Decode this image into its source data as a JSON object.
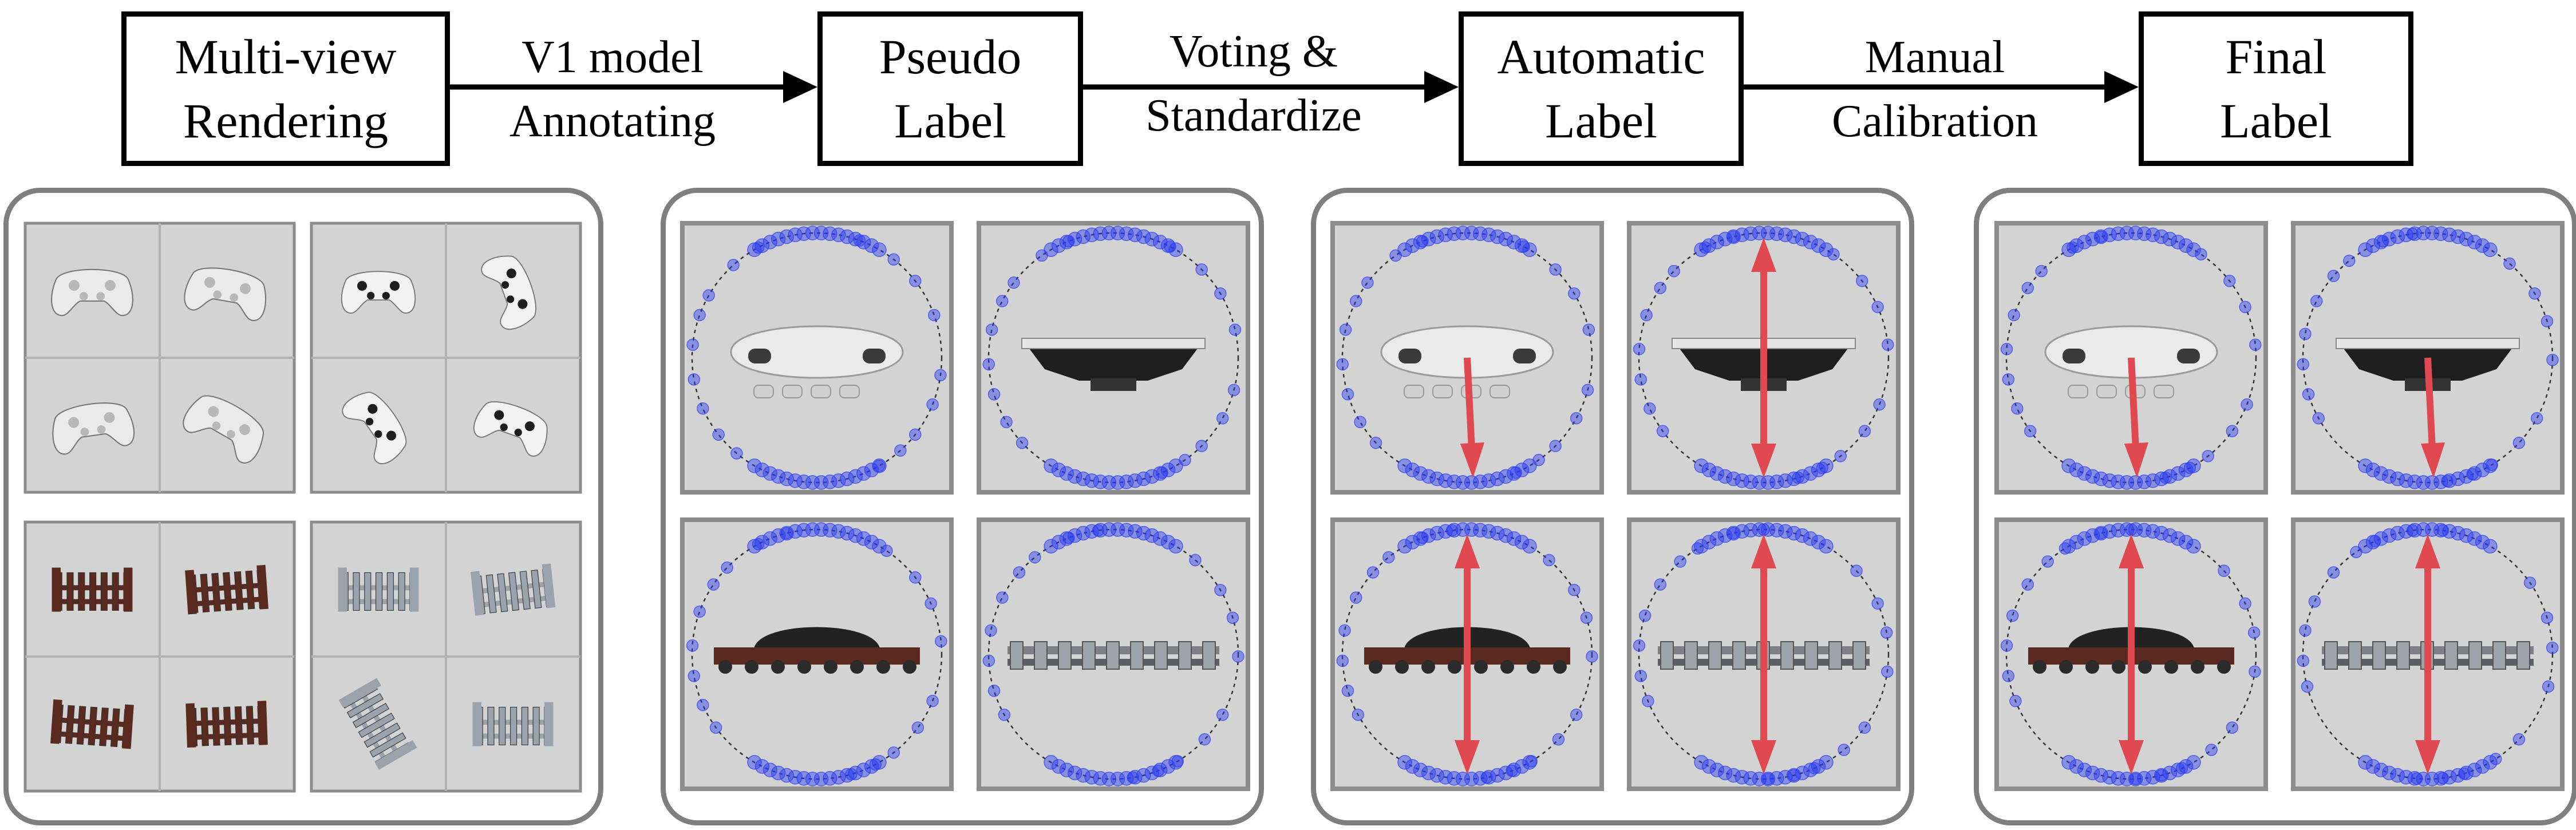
{
  "stages": [
    {
      "label": "Multi-view\nRendering"
    },
    {
      "label": "Pseudo\nLabel"
    },
    {
      "label": "Automatic\nLabel"
    },
    {
      "label": "Final\nLabel"
    }
  ],
  "transitions": [
    {
      "label": "V1 model\nAnnotating"
    },
    {
      "label": "Voting &\nStandardize"
    },
    {
      "label": "Manual\nCalibration"
    }
  ],
  "colors": {
    "tile_bg": "#d3d3d3",
    "tile_border": "#8c8c8c",
    "panel_border": "#7f7f7f",
    "vote_dots": "#2b3cf0",
    "orientation_arrow": "#e0494f",
    "controller_white": "#eaeaea",
    "controller_black": "#1e1e1e",
    "fence_brown": "#5a2a1f",
    "fence_gray": "#9aa3ab",
    "train_black": "#222222",
    "train_track": "#7c8086"
  },
  "panels": [
    {
      "name": "multi-view-rendering-panel",
      "groups": [
        "white-controller",
        "black-controller",
        "brown-fence",
        "gray-fence"
      ]
    },
    {
      "name": "pseudo-label-panel",
      "views": [
        "controller-top",
        "controller-front",
        "train-side",
        "track-side"
      ],
      "arrows": "none"
    },
    {
      "name": "automatic-label-panel",
      "views": [
        "controller-top",
        "controller-front",
        "train-side",
        "track-side"
      ],
      "arrows": [
        "down",
        "double",
        "double",
        "double"
      ]
    },
    {
      "name": "final-label-panel",
      "views": [
        "controller-top",
        "controller-front",
        "train-side",
        "track-side"
      ],
      "arrows": [
        "down",
        "down",
        "double",
        "double"
      ]
    }
  ]
}
